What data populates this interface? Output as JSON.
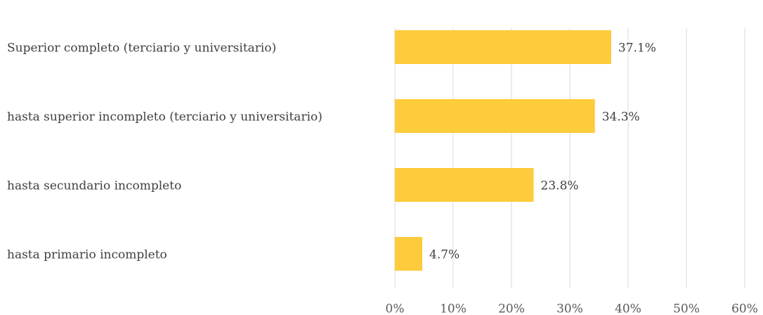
{
  "chart_data": {
    "type": "bar",
    "orientation": "horizontal",
    "categories": [
      "Superior completo (terciario y universitario)",
      "hasta superior incompleto (terciario y universitario)",
      "hasta secundario incompleto",
      "hasta primario incompleto"
    ],
    "values": [
      37.1,
      34.3,
      23.8,
      4.7
    ],
    "value_labels": [
      "37.1%",
      "34.3%",
      "23.8%",
      "4.7%"
    ],
    "color": "#fdcb3b",
    "xlim": [
      0,
      60
    ],
    "xticks": [
      {
        "value": 0,
        "label": "0%"
      },
      {
        "value": 10,
        "label": "10%"
      },
      {
        "value": 20,
        "label": "20%"
      },
      {
        "value": 30,
        "label": "30%"
      },
      {
        "value": 40,
        "label": "40%"
      },
      {
        "value": 50,
        "label": "50%"
      },
      {
        "value": 60,
        "label": "60%"
      }
    ],
    "grid": true
  }
}
